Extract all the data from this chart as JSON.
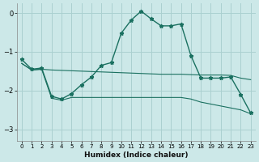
{
  "xlabel": "Humidex (Indice chaleur)",
  "background_color": "#cce8e8",
  "grid_color": "#aad0d0",
  "line_color": "#1a7060",
  "ylim": [
    -3.3,
    0.25
  ],
  "xlim": [
    -0.5,
    23.5
  ],
  "yticks": [
    0,
    -1,
    -2,
    -3
  ],
  "x_ticks": [
    0,
    1,
    2,
    3,
    4,
    5,
    6,
    7,
    8,
    9,
    10,
    11,
    12,
    13,
    14,
    15,
    16,
    17,
    18,
    19,
    20,
    21,
    22,
    23
  ],
  "curve_x": [
    0,
    1,
    2,
    3,
    4,
    5,
    6,
    7,
    8,
    9,
    10,
    11,
    12,
    13,
    14,
    15,
    16,
    17,
    18,
    19,
    20,
    21,
    22,
    23
  ],
  "curve_y": [
    -1.2,
    -1.45,
    -1.42,
    -2.15,
    -2.22,
    -2.08,
    -1.85,
    -1.65,
    -1.35,
    -1.28,
    -0.52,
    -0.18,
    0.05,
    -0.15,
    -0.33,
    -0.33,
    -0.28,
    -1.1,
    -1.68,
    -1.68,
    -1.68,
    -1.65,
    -2.1,
    -2.58
  ],
  "upper_band_x": [
    0,
    1,
    2,
    3,
    4,
    5,
    6,
    7,
    8,
    9,
    10,
    11,
    12,
    13,
    14,
    15,
    16,
    17,
    18,
    19,
    20,
    21,
    22,
    23
  ],
  "upper_band_y": [
    -1.3,
    -1.47,
    -1.45,
    -1.47,
    -1.48,
    -1.49,
    -1.5,
    -1.51,
    -1.52,
    -1.53,
    -1.54,
    -1.55,
    -1.56,
    -1.57,
    -1.58,
    -1.58,
    -1.58,
    -1.59,
    -1.6,
    -1.6,
    -1.6,
    -1.61,
    -1.68,
    -1.72
  ],
  "lower_band_x": [
    0,
    1,
    2,
    3,
    4,
    5,
    6,
    7,
    8,
    9,
    10,
    11,
    12,
    13,
    14,
    15,
    16,
    17,
    18,
    19,
    20,
    21,
    22,
    23
  ],
  "lower_band_y": [
    -1.3,
    -1.47,
    -1.45,
    -2.2,
    -2.25,
    -2.18,
    -2.18,
    -2.18,
    -2.18,
    -2.18,
    -2.18,
    -2.18,
    -2.18,
    -2.18,
    -2.18,
    -2.18,
    -2.18,
    -2.22,
    -2.3,
    -2.35,
    -2.4,
    -2.45,
    -2.5,
    -2.6
  ]
}
